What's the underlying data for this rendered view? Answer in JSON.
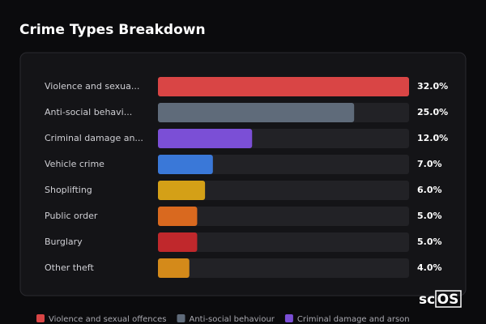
{
  "chart_data": {
    "type": "bar",
    "orientation": "horizontal",
    "title": "Crime Types Breakdown",
    "categories": [
      "Violence and sexua...",
      "Anti-social behavi...",
      "Criminal damage an...",
      "Vehicle crime",
      "Shoplifting",
      "Public order",
      "Burglary",
      "Other theft"
    ],
    "values": [
      32,
      25,
      12,
      7,
      6,
      5,
      5,
      4
    ],
    "value_labels": [
      "32.0%",
      "25.0%",
      "12.0%",
      "7.0%",
      "6.0%",
      "5.0%",
      "5.0%",
      "4.0%"
    ],
    "colors": [
      "#d94545",
      "#5f6b7a",
      "#7b4fd6",
      "#3a78d8",
      "#d4a017",
      "#d9691f",
      "#c0282c",
      "#d48a1a"
    ],
    "xlim": [
      0,
      32
    ],
    "legend": [
      {
        "name": "Violence and sexual offences",
        "color": "#d94545"
      },
      {
        "name": "Anti-social behaviour",
        "color": "#5f6b7a"
      },
      {
        "name": "Criminal damage and arson",
        "color": "#7b4fd6"
      }
    ]
  },
  "logo": [
    "sc",
    "OS"
  ]
}
